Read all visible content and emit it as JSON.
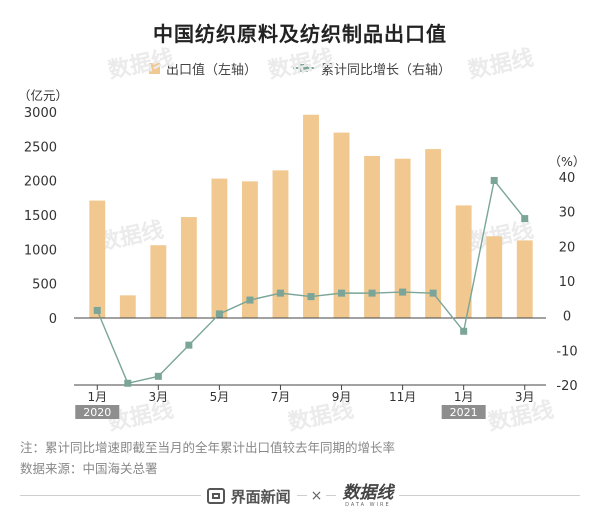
{
  "header": {
    "title": "中国纺织原料及纺织制品出口值"
  },
  "legend": {
    "bar_label": "出口值（左轴）",
    "line_label": "累计同比增长（右轴）"
  },
  "footer": {
    "note": "注：累计同比增速即截至当月的全年累计出口值较去年同期的增长率",
    "source": "数据来源：中国海关总署",
    "brand_left": "界面新闻",
    "times": "×",
    "brand_right": "数据线",
    "brand_right_sub": "DATA WIRE"
  },
  "chart_data": {
    "type": "bar+line",
    "left_axis": {
      "unit_label": "（亿元）",
      "ylim": [
        -5000,
        3000
      ],
      "ticks": [
        0,
        500,
        1000,
        1500,
        2000,
        2500,
        3000
      ]
    },
    "right_axis": {
      "unit_label": "（%）",
      "ylim": [
        -20,
        40
      ],
      "ticks": [
        -20,
        -10,
        0,
        10,
        20,
        30,
        40
      ]
    },
    "x_tick_labels": [
      "1月",
      "",
      "3月",
      "",
      "5月",
      "",
      "7月",
      "",
      "9月",
      "",
      "11月",
      "",
      "1月",
      "",
      "3月"
    ],
    "year_labels": [
      {
        "index": 0,
        "text": "2020"
      },
      {
        "index": 12,
        "text": "2021"
      }
    ],
    "bar_series": {
      "name": "出口值（左轴）",
      "color": "#f0c890",
      "values": [
        1710,
        330,
        1060,
        1470,
        2030,
        1990,
        2150,
        2960,
        2700,
        2360,
        2320,
        2460,
        1640,
        1190,
        1130
      ]
    },
    "line_series": {
      "name": "累计同比增长（右轴）",
      "color": "#7aa598",
      "values": [
        1.5,
        -19.5,
        -17.5,
        -8.5,
        0.5,
        4.5,
        6.5,
        5.5,
        6.5,
        6.5,
        6.8,
        6.5,
        -4.5,
        39,
        28
      ]
    },
    "grid": false
  }
}
